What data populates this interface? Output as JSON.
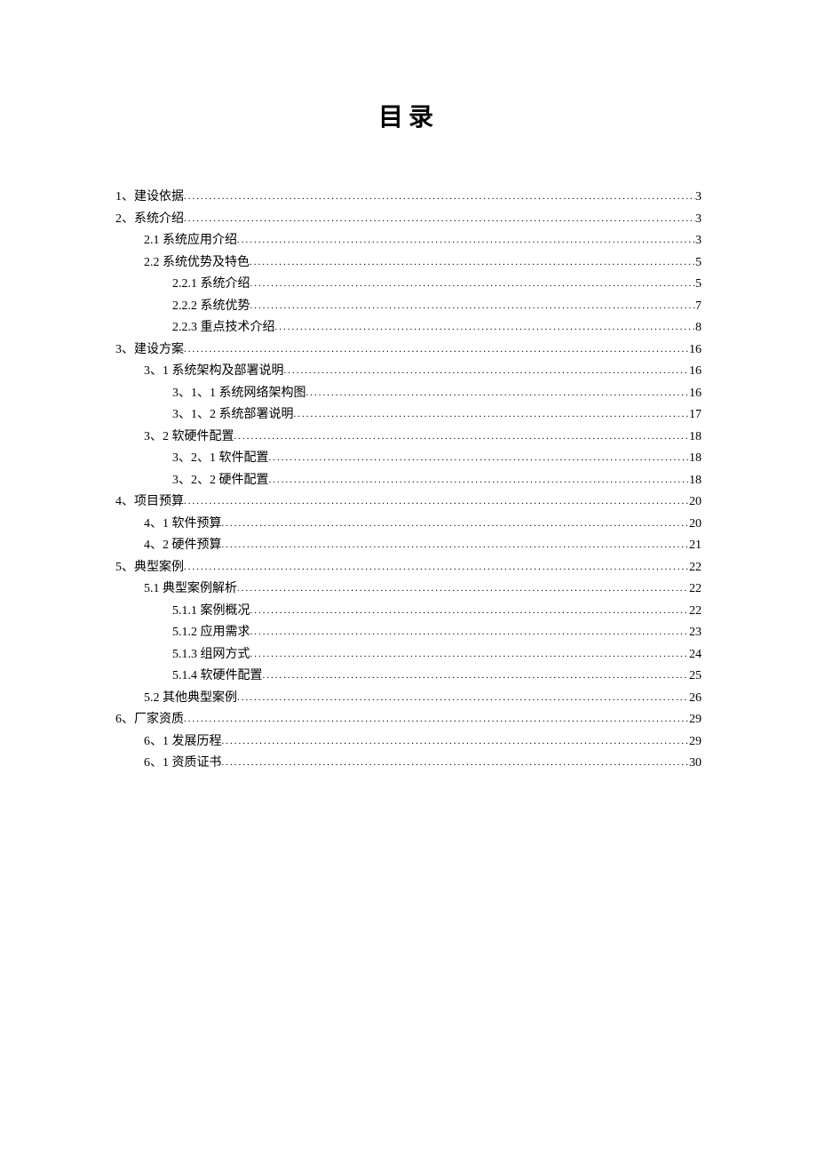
{
  "title": "目录",
  "entries": [
    {
      "level": 1,
      "label": "1、建设依据",
      "page": "3"
    },
    {
      "level": 1,
      "label": "2、系统介绍",
      "page": "3"
    },
    {
      "level": 2,
      "label": "2.1 系统应用介绍",
      "page": "3"
    },
    {
      "level": 2,
      "label": "2.2 系统优势及特色",
      "page": "5"
    },
    {
      "level": 3,
      "label": "2.2.1 系统介绍",
      "page": "5"
    },
    {
      "level": 3,
      "label": "2.2.2 系统优势",
      "page": "7"
    },
    {
      "level": 3,
      "label": "2.2.3 重点技术介绍",
      "page": "8"
    },
    {
      "level": 1,
      "label": "3、建设方案",
      "page": "16"
    },
    {
      "level": 2,
      "label": "3、1 系统架构及部署说明",
      "page": "16"
    },
    {
      "level": 3,
      "label": "3、1、1 系统网络架构图",
      "page": "16"
    },
    {
      "level": 3,
      "label": "3、1、2 系统部署说明",
      "page": "17"
    },
    {
      "level": 2,
      "label": "3、2 软硬件配置",
      "page": "18"
    },
    {
      "level": 3,
      "label": "3、2、1 软件配置",
      "page": "18"
    },
    {
      "level": 3,
      "label": "3、2、2 硬件配置",
      "page": "18"
    },
    {
      "level": 1,
      "label": "4、项目预算",
      "page": "20"
    },
    {
      "level": 2,
      "label": "4、1 软件预算",
      "page": "20"
    },
    {
      "level": 2,
      "label": "4、2 硬件预算",
      "page": "21"
    },
    {
      "level": 1,
      "label": "5、典型案例",
      "page": "22"
    },
    {
      "level": 2,
      "label": "5.1  典型案例解析",
      "page": "22"
    },
    {
      "level": 3,
      "label": "5.1.1 案例概况",
      "page": "22"
    },
    {
      "level": 3,
      "label": "5.1.2  应用需求",
      "page": "23"
    },
    {
      "level": 3,
      "label": "5.1.3  组网方式",
      "page": "24"
    },
    {
      "level": 3,
      "label": "5.1.4  软硬件配置",
      "page": "25"
    },
    {
      "level": 2,
      "label": "5.2  其他典型案例",
      "page": "26"
    },
    {
      "level": 1,
      "label": "6、厂家资质",
      "page": "29"
    },
    {
      "level": 2,
      "label": "6、1 发展历程",
      "page": "29"
    },
    {
      "level": 2,
      "label": "6、1 资质证书",
      "page": "30"
    }
  ]
}
